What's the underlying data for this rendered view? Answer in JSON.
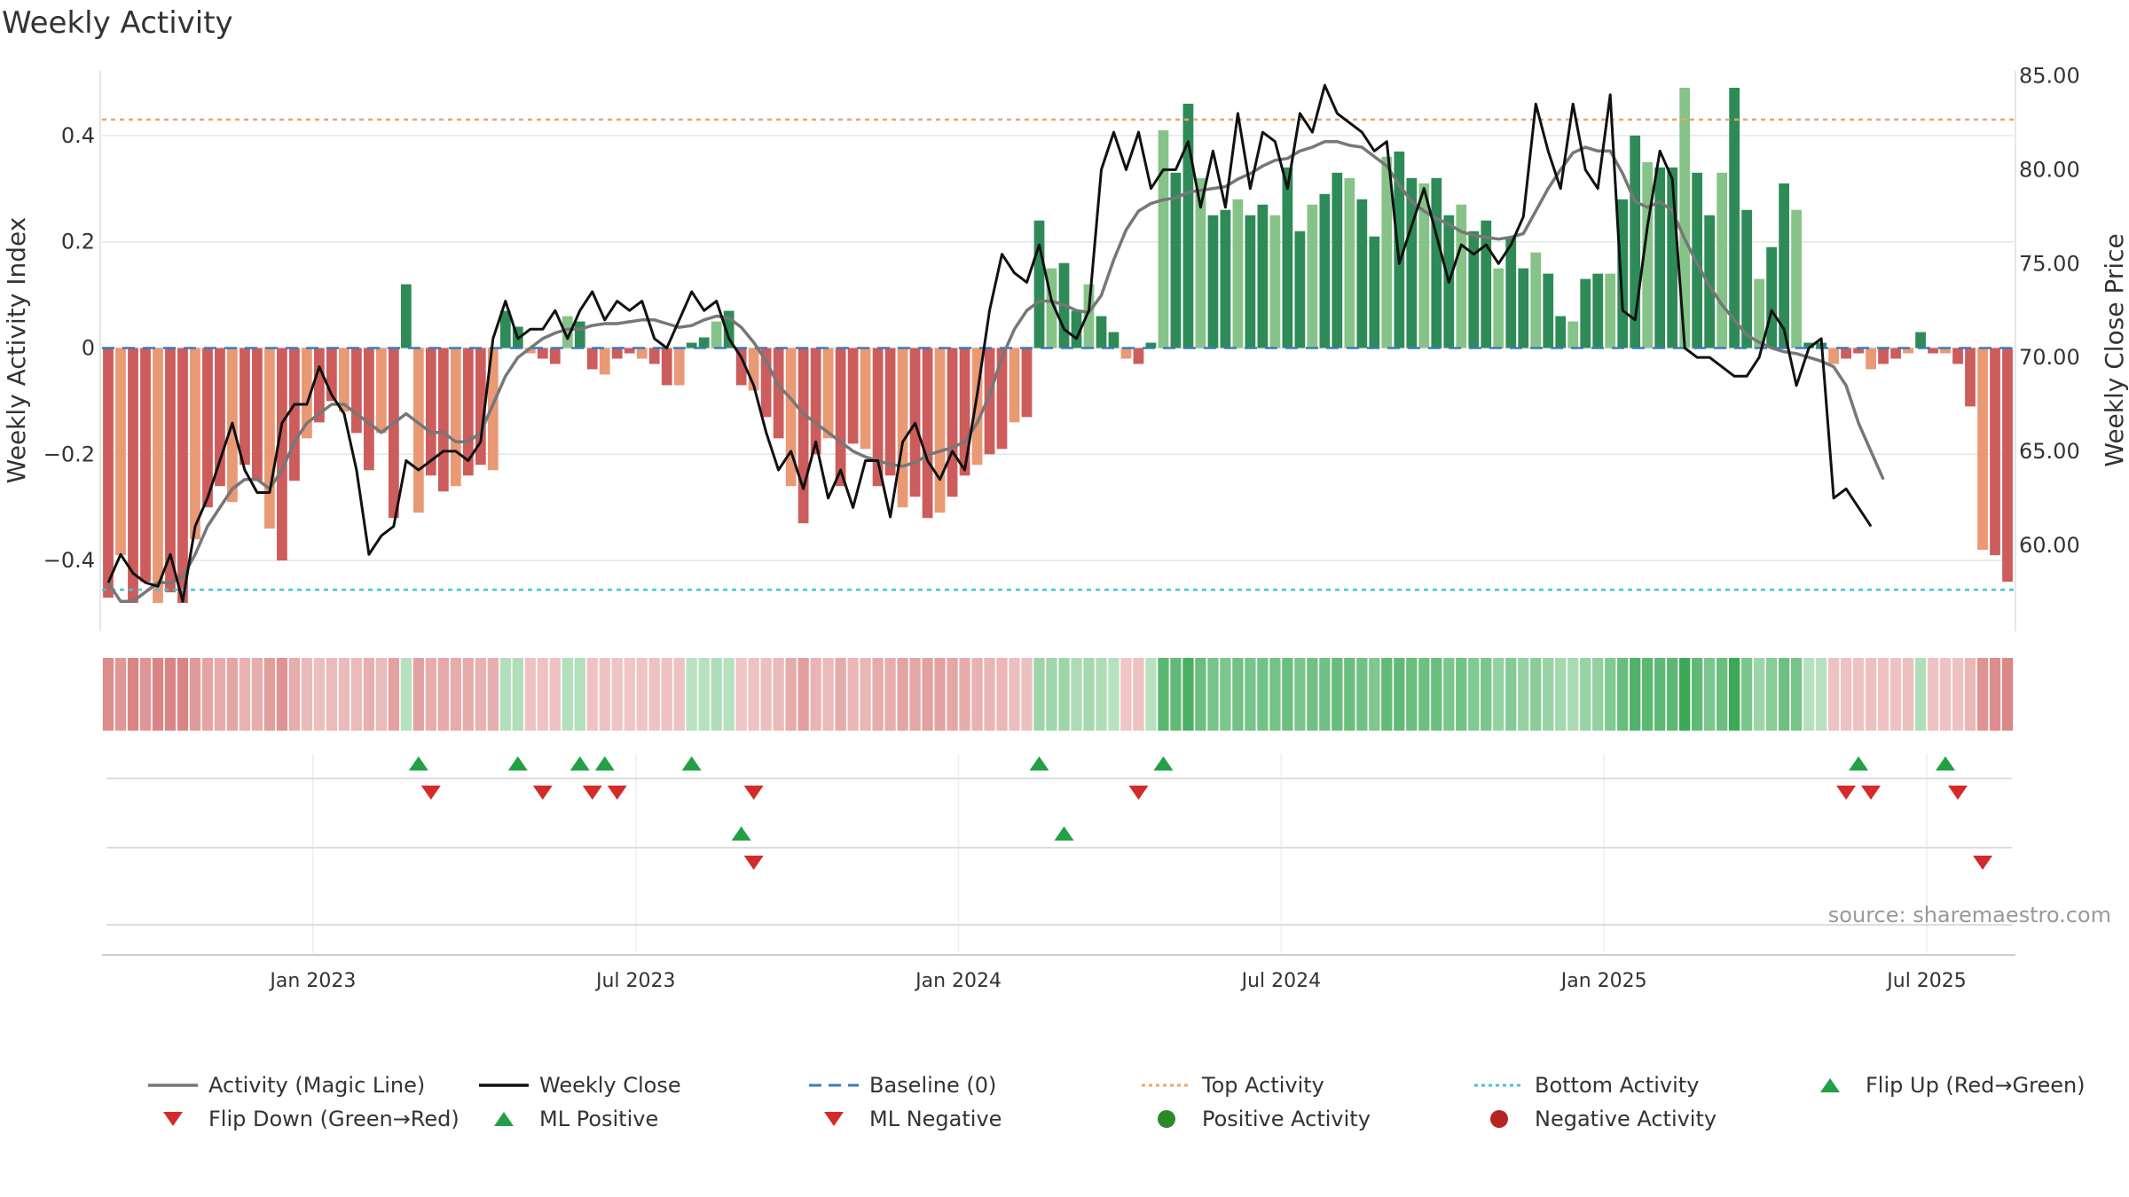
{
  "chart_data": {
    "type": "bar",
    "title": "Weekly Activity",
    "ylabel": "Weekly Activity Index",
    "y2label": "Weekly Close Price",
    "ylim": [
      -0.53,
      0.53
    ],
    "y2lim": [
      55.5,
      85.5
    ],
    "yticks": [
      -0.4,
      -0.2,
      0,
      0.2,
      0.4
    ],
    "ytick_labels": [
      "−0.4",
      "−0.2",
      "0",
      "0.2",
      "0.4"
    ],
    "y2ticks": [
      60,
      65,
      70,
      75,
      80,
      85
    ],
    "y2tick_labels": [
      "60.00",
      "65.00",
      "70.00",
      "75.00",
      "80.00",
      "85.00"
    ],
    "xtick_labels": [
      "Jan 2023",
      "Jul 2023",
      "Jan 2024",
      "Jul 2024",
      "Jan 2025",
      "Jul 2025"
    ],
    "xtick_weeks": [
      17,
      43,
      69,
      95,
      121,
      147
    ],
    "top_activity": 0.43,
    "bottom_activity": -0.455,
    "source": "source: sharemaestro.com",
    "bars": [
      -0.47,
      -0.39,
      -0.48,
      -0.44,
      -0.48,
      -0.46,
      -0.48,
      -0.36,
      -0.3,
      -0.26,
      -0.29,
      -0.22,
      -0.25,
      -0.34,
      -0.4,
      -0.25,
      -0.17,
      -0.14,
      -0.1,
      -0.12,
      -0.16,
      -0.23,
      -0.16,
      -0.32,
      0.12,
      -0.31,
      -0.24,
      -0.27,
      -0.26,
      -0.24,
      -0.22,
      -0.23,
      0.07,
      0.04,
      -0.01,
      -0.02,
      -0.03,
      0.06,
      0.05,
      -0.04,
      -0.05,
      -0.02,
      -0.01,
      -0.02,
      -0.03,
      -0.07,
      -0.07,
      0.01,
      0.02,
      0.05,
      0.07,
      -0.07,
      -0.08,
      -0.13,
      -0.17,
      -0.26,
      -0.33,
      -0.2,
      -0.17,
      -0.26,
      -0.18,
      -0.19,
      -0.26,
      -0.24,
      -0.3,
      -0.28,
      -0.32,
      -0.31,
      -0.28,
      -0.24,
      -0.22,
      -0.2,
      -0.19,
      -0.14,
      -0.13,
      0.24,
      0.15,
      0.16,
      0.07,
      0.12,
      0.06,
      0.03,
      -0.02,
      -0.03,
      0.01,
      0.41,
      0.33,
      0.46,
      0.32,
      0.25,
      0.26,
      0.28,
      0.25,
      0.27,
      0.25,
      0.34,
      0.22,
      0.27,
      0.29,
      0.33,
      0.32,
      0.28,
      0.21,
      0.36,
      0.37,
      0.32,
      0.31,
      0.32,
      0.25,
      0.27,
      0.22,
      0.24,
      0.15,
      0.21,
      0.15,
      0.18,
      0.14,
      0.06,
      0.05,
      0.13,
      0.14,
      0.14,
      0.28,
      0.4,
      0.35,
      0.34,
      0.34,
      0.49,
      0.33,
      0.25,
      0.33,
      0.49,
      0.26,
      0.13,
      0.19,
      0.31,
      0.26,
      0.01,
      0.01,
      -0.03,
      -0.02,
      -0.01,
      -0.04,
      -0.03,
      -0.02,
      -0.01,
      0.03,
      -0.01,
      -0.01,
      -0.03,
      -0.11,
      -0.38,
      -0.39,
      -0.44
    ],
    "close": [
      58.0,
      59.5,
      58.5,
      58.0,
      57.8,
      59.5,
      57.0,
      61.0,
      62.5,
      64.5,
      66.5,
      64.0,
      62.8,
      62.8,
      66.5,
      67.5,
      67.5,
      69.5,
      68.0,
      67.0,
      64.0,
      59.5,
      60.5,
      61.0,
      64.5,
      64.0,
      64.5,
      65.0,
      65.0,
      64.5,
      65.5,
      71.0,
      73.0,
      71.0,
      71.5,
      71.5,
      72.5,
      71.0,
      72.5,
      73.5,
      72.0,
      73.0,
      72.5,
      73.0,
      71.0,
      70.5,
      72.0,
      73.5,
      72.5,
      73.0,
      71.0,
      70.0,
      68.5,
      66.0,
      64.0,
      65.0,
      63.0,
      65.5,
      62.5,
      64.0,
      62.0,
      64.5,
      64.5,
      61.5,
      65.5,
      66.5,
      64.5,
      63.5,
      65.0,
      64.0,
      68.0,
      72.5,
      75.5,
      74.5,
      74.0,
      76.0,
      73.0,
      71.5,
      71.0,
      72.5,
      80.0,
      82.0,
      80.0,
      82.0,
      79.0,
      80.0,
      80.0,
      81.5,
      78.0,
      81.0,
      78.0,
      83.0,
      79.0,
      82.0,
      81.5,
      79.0,
      83.0,
      82.0,
      84.5,
      83.0,
      82.5,
      82.0,
      81.0,
      81.5,
      75.0,
      77.0,
      79.0,
      76.5,
      74.0,
      76.0,
      75.5,
      76.0,
      75.0,
      76.0,
      77.5,
      83.5,
      81.0,
      79.0,
      83.5,
      80.0,
      79.0,
      84.0,
      72.5,
      72.0,
      77.0,
      81.0,
      79.5,
      70.5,
      70.0,
      70.0,
      69.5,
      69.0,
      69.0,
      70.0,
      72.5,
      71.5,
      68.5,
      70.5,
      71.0,
      62.5,
      63.0,
      62.0,
      61.0
    ],
    "magic": [
      58,
      57,
      57,
      57.5,
      58,
      58,
      58.3,
      59.5,
      61,
      62,
      63,
      63.5,
      63.5,
      63,
      64,
      65.5,
      66.5,
      67,
      67.5,
      67.5,
      67,
      66.5,
      66,
      66.5,
      67,
      66.5,
      66,
      66,
      65.5,
      65.5,
      66,
      67.5,
      69,
      70,
      70.5,
      71,
      71.3,
      71.5,
      71.5,
      71.7,
      71.8,
      71.8,
      71.9,
      72,
      72,
      71.8,
      71.6,
      71.7,
      72,
      72.2,
      72.1,
      71.6,
      70.8,
      69.8,
      68.5,
      67.8,
      67,
      66.5,
      66,
      65.5,
      65,
      64.7,
      64.5,
      64.3,
      64.2,
      64.4,
      64.8,
      65,
      65.2,
      65.5,
      66.5,
      68,
      70,
      71.5,
      72.5,
      73,
      73,
      72.8,
      72.5,
      72.4,
      73.3,
      75.2,
      76.8,
      77.8,
      78.2,
      78.4,
      78.5,
      78.8,
      78.9,
      79,
      79.1,
      79.5,
      79.8,
      80.2,
      80.5,
      80.6,
      81,
      81.2,
      81.5,
      81.5,
      81.3,
      81.2,
      80.7,
      80.2,
      79.2,
      78.3,
      77.8,
      77.4,
      77.1,
      76.7,
      76.5,
      76.4,
      76.3,
      76.4,
      76.6,
      77.8,
      79,
      80,
      80.9,
      81.2,
      81,
      81,
      79.8,
      78.3,
      78,
      78.3,
      77.8,
      76.3,
      75,
      73.8,
      72.8,
      72,
      71.2,
      70.8,
      70.5,
      70.3,
      70.2,
      70,
      69.8,
      69.5,
      68.5,
      66.5,
      65,
      63.5
    ],
    "strip": [
      0.53,
      0.45,
      0.58,
      0.46,
      0.58,
      0.58,
      0.58,
      0.43,
      0.36,
      0.31,
      0.35,
      0.26,
      0.3,
      0.41,
      0.48,
      0.3,
      0.2,
      0.17,
      0.2,
      0.2,
      0.2,
      0.28,
      0.19,
      0.38,
      0.14,
      0.37,
      0.29,
      0.32,
      0.31,
      0.29,
      0.26,
      0.28,
      0.16,
      0.18,
      0.14,
      0.14,
      0.14,
      0.16,
      0.16,
      0.14,
      0.14,
      0.13,
      0.12,
      0.13,
      0.14,
      0.14,
      0.14,
      0.12,
      0.14,
      0.17,
      0.14,
      0.13,
      0.14,
      0.16,
      0.2,
      0.31,
      0.4,
      0.24,
      0.2,
      0.31,
      0.22,
      0.23,
      0.31,
      0.29,
      0.36,
      0.34,
      0.38,
      0.37,
      0.34,
      0.29,
      0.26,
      0.24,
      0.23,
      0.17,
      0.16,
      0.29,
      0.28,
      0.29,
      0.2,
      0.25,
      0.19,
      0.14,
      0.12,
      0.14,
      0.13,
      0.7,
      0.65,
      0.8,
      0.6,
      0.52,
      0.5,
      0.56,
      0.52,
      0.55,
      0.54,
      0.6,
      0.5,
      0.56,
      0.56,
      0.62,
      0.6,
      0.56,
      0.48,
      0.65,
      0.66,
      0.6,
      0.58,
      0.6,
      0.5,
      0.55,
      0.46,
      0.5,
      0.34,
      0.44,
      0.34,
      0.4,
      0.32,
      0.26,
      0.22,
      0.32,
      0.36,
      0.46,
      0.62,
      0.76,
      0.7,
      0.68,
      0.68,
      0.88,
      0.66,
      0.5,
      0.6,
      0.88,
      0.5,
      0.3,
      0.42,
      0.58,
      0.52,
      0.14,
      0.14,
      0.14,
      0.14,
      0.14,
      0.16,
      0.14,
      0.14,
      0.16,
      0.18,
      0.14,
      0.14,
      0.14,
      0.22,
      0.48,
      0.52,
      0.56
    ],
    "flip_up": [
      25,
      33,
      38,
      40,
      47,
      75,
      85,
      141,
      148
    ],
    "flip_down": [
      26,
      35,
      39,
      41,
      52,
      83,
      140,
      142,
      149
    ],
    "ml_positive": [
      51,
      77
    ],
    "ml_negative": [
      52,
      151
    ],
    "legend": [
      {
        "label": "Activity (Magic Line)",
        "kind": "line",
        "color": "#777777"
      },
      {
        "label": "Weekly Close",
        "kind": "line",
        "color": "#111111"
      },
      {
        "label": "Baseline (0)",
        "kind": "dashed",
        "color": "#3a7bbf"
      },
      {
        "label": "Top Activity",
        "kind": "dotted",
        "color": "#f0a36b"
      },
      {
        "label": "Bottom Activity",
        "kind": "dotted",
        "color": "#3ec6d6"
      },
      {
        "label": "Flip Up (Red→Green)",
        "kind": "tri-up",
        "color": "#22a045"
      },
      {
        "label": "Flip Down (Green→Red)",
        "kind": "tri-down",
        "color": "#d52a2a"
      },
      {
        "label": "ML Positive",
        "kind": "tri-up",
        "color": "#22a045"
      },
      {
        "label": "ML Negative",
        "kind": "tri-down",
        "color": "#d52a2a"
      },
      {
        "label": "Positive Activity",
        "kind": "dot",
        "color": "#2a8a2a"
      },
      {
        "label": "Negative Activity",
        "kind": "dot",
        "color": "#b52323"
      }
    ],
    "colors": {
      "pos_dark": "#2e8b57",
      "pos_light": "#86c388",
      "neg_dark": "#cd5c5c",
      "neg_light": "#ea9975",
      "up": "#22a045",
      "down": "#d52a2a",
      "grid": "#e6e6e6"
    }
  }
}
